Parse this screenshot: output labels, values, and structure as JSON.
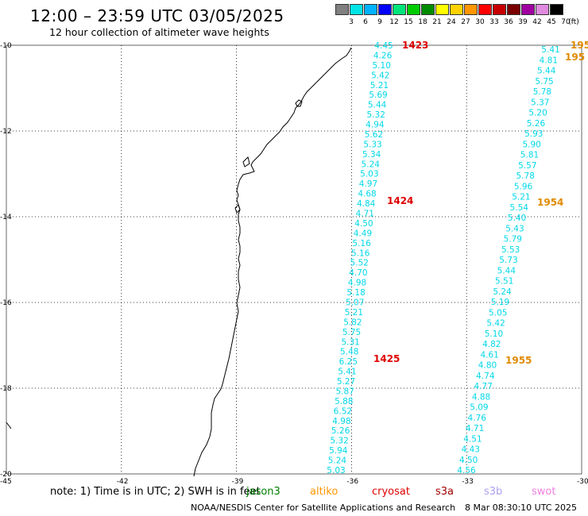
{
  "header": {
    "title": "12:00 – 23:59 UTC 03/05/2025",
    "subtitle": "12 hour collection of altimeter wave heights"
  },
  "colorbar": {
    "unit": "(ft)",
    "ticks": [
      "3",
      "6",
      "9",
      "12",
      "15",
      "18",
      "21",
      "24",
      "27",
      "30",
      "33",
      "36",
      "39",
      "42",
      "45",
      "70"
    ],
    "colors": [
      "#808080",
      "#00e5e5",
      "#00b2ff",
      "#0000ff",
      "#00e57a",
      "#00cc00",
      "#008c00",
      "#ffff00",
      "#ffd200",
      "#ff9600",
      "#ff0000",
      "#c80000",
      "#7a0000",
      "#a000a0",
      "#e08ae0",
      "#000000"
    ]
  },
  "map": {
    "lat_ticks": [
      "-10",
      "-12",
      "-14",
      "-16",
      "-18",
      "-20"
    ],
    "lon_ticks": [
      "-45",
      "-42",
      "-39",
      "-36",
      "-33",
      "-30"
    ],
    "swh_color": "#00d8e8",
    "tracks": [
      {
        "values": [
          "4.45",
          "4.26",
          "5.10",
          "5.42",
          "5.21",
          "5.69",
          "5.44",
          "5.32",
          "4.94",
          "5.62",
          "5.33",
          "5.34",
          "5.24",
          "5.03",
          "4.97",
          "4.68",
          "4.84",
          "4.71",
          "4.50",
          "4.49",
          "5.16",
          "5.16",
          "5.52",
          "4.70",
          "4.98",
          "5.18",
          "5.07",
          "5.21",
          "5.82",
          "5.75",
          "5.31",
          "5.48",
          "6.25",
          "5.41",
          "5.27",
          "5.87",
          "5.88",
          "6.52",
          "4.98",
          "5.26",
          "5.32",
          "5.94",
          "5.24",
          "5.03"
        ],
        "time_labels": [
          {
            "text": "1423",
            "color": "#e00000"
          },
          {
            "text": "1424",
            "color": "#e00000"
          },
          {
            "text": "1425",
            "color": "#e00000"
          }
        ]
      },
      {
        "values": [
          "5.41",
          "4.81",
          "5.44",
          "5.75",
          "5.78",
          "5.37",
          "5.20",
          "5.26",
          "5.93",
          "5.90",
          "5.81",
          "5.57",
          "5.78",
          "5.96",
          "5.21",
          "5.54",
          "5.40",
          "5.43",
          "5.79",
          "5.53",
          "5.73",
          "5.44",
          "5.51",
          "5.24",
          "5.19",
          "5.05",
          "5.42",
          "5.10",
          "4.82",
          "4.61",
          "4.80",
          "4.74",
          "4.77",
          "4.88",
          "5.09",
          "4.76",
          "4.71",
          "4.51",
          "4.43",
          "4.50",
          "4.56"
        ],
        "time_labels": [
          {
            "text": "195",
            "color": "#e08a00"
          },
          {
            "text": "195",
            "color": "#e08a00"
          },
          {
            "text": "1954",
            "color": "#e08a00"
          },
          {
            "text": "1955",
            "color": "#e08a00"
          }
        ]
      }
    ]
  },
  "footer": {
    "note": "note:  1) Time is in UTC; 2) SWH is in feet",
    "satellites": [
      {
        "name": "jason3",
        "color": "#008000"
      },
      {
        "name": "altiko",
        "color": "#ff9600"
      },
      {
        "name": "cryosat",
        "color": "#e00000"
      },
      {
        "name": "s3a",
        "color": "#a00000"
      },
      {
        "name": "s3b",
        "color": "#b0a0f0"
      },
      {
        "name": "swot",
        "color": "#f080e0"
      }
    ],
    "credit": "NOAA/NESDIS Center for Satellite Applications and Research",
    "timestamp": "8 Mar 08:30:10 UTC 2025"
  }
}
